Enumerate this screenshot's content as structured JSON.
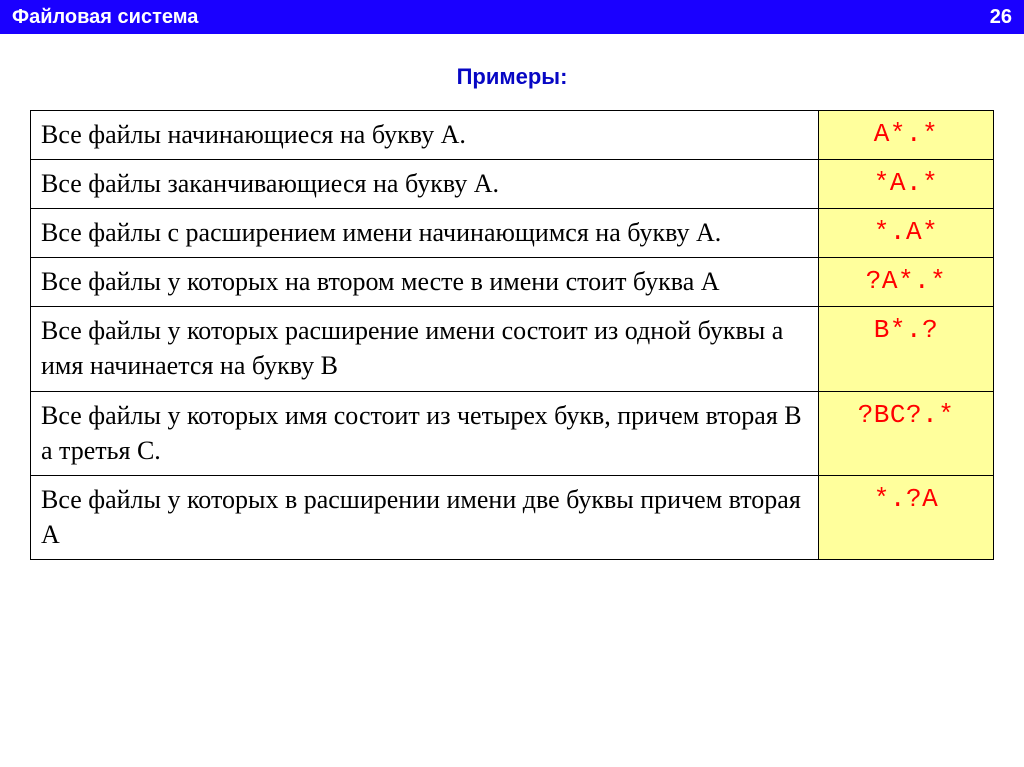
{
  "header": {
    "title": "Файловая система",
    "page_number": "26",
    "bg_color": "#1a00ff",
    "text_color": "#ffffff"
  },
  "subtitle": {
    "text": "Примеры:",
    "color": "#0707c4"
  },
  "table": {
    "type": "table",
    "columns": [
      "description",
      "pattern"
    ],
    "pattern_cell": {
      "bg_color": "#ffff9c",
      "text_color": "#ff0000",
      "font_family": "Courier New"
    },
    "desc_cell": {
      "text_color": "#000000",
      "font_family": "Times New Roman"
    },
    "border_color": "#000000",
    "rows": [
      {
        "desc": "Все файлы начинающиеся на букву А.",
        "pattern": "А*.*"
      },
      {
        "desc": "Все файлы заканчивающиеся на букву А.",
        "pattern": "*А.*"
      },
      {
        "desc": "Все файлы  с расширением имени    начинающимся на букву А.",
        "pattern": "*.А*"
      },
      {
        "desc": "Все файлы у которых на втором месте в имени стоит буква А",
        "pattern": "?А*.*"
      },
      {
        "desc": "Все файлы у которых расширение имени состоит из одной буквы а имя начинается на букву  В",
        "pattern": "В*.?"
      },
      {
        "desc": "Все файлы у которых имя состоит из четырех букв, причем вторая В а третья С.",
        "pattern": "?ВС?.*"
      },
      {
        "desc": "Все файлы у которых в расширении имени две буквы причем вторая А",
        "pattern": "*.?А"
      }
    ]
  }
}
